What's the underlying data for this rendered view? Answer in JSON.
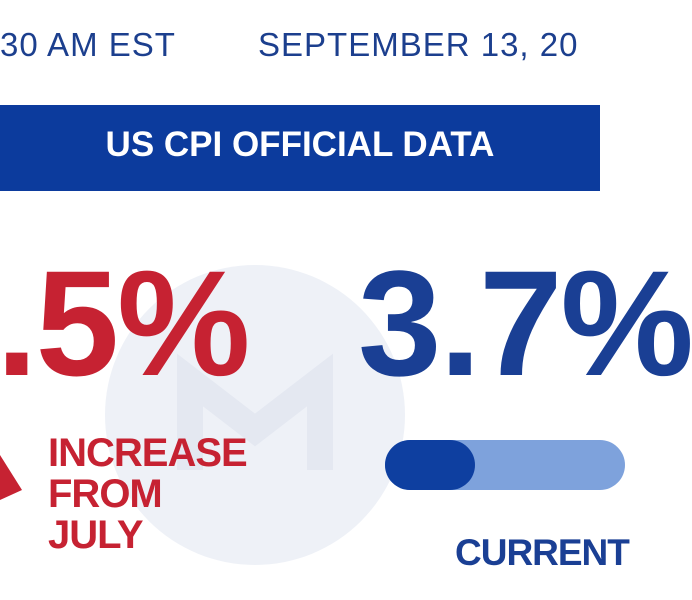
{
  "header": {
    "time": "30 AM EST",
    "date": "SEPTEMBER 13, 20"
  },
  "banner": "US CPI OFFICIAL DATA",
  "monthly": {
    "value": ".5%",
    "label": [
      "INCREASE",
      "FROM",
      "JULY"
    ]
  },
  "annual": {
    "value": "3.7%",
    "label": "CURRENT"
  }
}
